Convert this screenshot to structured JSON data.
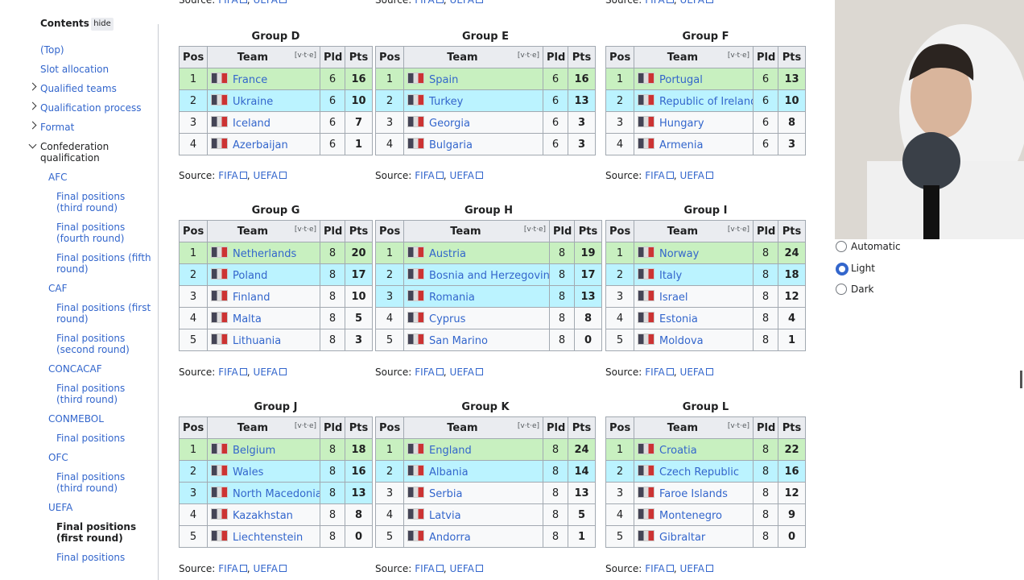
{
  "contents": {
    "title": "Contents",
    "hide": "hide",
    "items": [
      "(Top)",
      "Slot allocation",
      "Qualified teams",
      "Qualification process",
      "Format",
      "Confederation qualification",
      "AFC",
      "Final positions (third round)",
      "Final positions (fourth round)",
      "Final positions (fifth round)",
      "CAF",
      "Final positions (first round)",
      "Final positions (second round)",
      "CONCACAF",
      "Final positions (third round)",
      "CONMEBOL",
      "Final positions",
      "OFC",
      "Final positions (third round)",
      "UEFA",
      "Final positions (first round)",
      "Final positions"
    ]
  },
  "table_headers": [
    "Pos",
    "Team",
    "[v·t·e]",
    "Pld",
    "Pts"
  ],
  "source": {
    "label": "Source:",
    "links": [
      "FIFA",
      "UEFA"
    ],
    "separator": ","
  },
  "groups": [
    {
      "title": "Group D",
      "rows": [
        {
          "pos": 1,
          "team": "France",
          "pld": 6,
          "pts": 16,
          "color": "#c8f0c0"
        },
        {
          "pos": 2,
          "team": "Ukraine",
          "pld": 6,
          "pts": 10,
          "color": "#bbf3ff"
        },
        {
          "pos": 3,
          "team": "Iceland",
          "pld": 6,
          "pts": 7,
          "color": "#f8f9fa"
        },
        {
          "pos": 4,
          "team": "Azerbaijan",
          "pld": 6,
          "pts": 1,
          "color": "#f8f9fa"
        }
      ]
    },
    {
      "title": "Group E",
      "rows": [
        {
          "pos": 1,
          "team": "Spain",
          "pld": 6,
          "pts": 16,
          "color": "#c8f0c0"
        },
        {
          "pos": 2,
          "team": "Turkey",
          "pld": 6,
          "pts": 13,
          "color": "#bbf3ff"
        },
        {
          "pos": 3,
          "team": "Georgia",
          "pld": 6,
          "pts": 3,
          "color": "#f8f9fa"
        },
        {
          "pos": 4,
          "team": "Bulgaria",
          "pld": 6,
          "pts": 3,
          "color": "#f8f9fa"
        }
      ]
    },
    {
      "title": "Group F",
      "rows": [
        {
          "pos": 1,
          "team": "Portugal",
          "pld": 6,
          "pts": 13,
          "color": "#c8f0c0"
        },
        {
          "pos": 2,
          "team": "Republic of Ireland",
          "pld": 6,
          "pts": 10,
          "color": "#bbf3ff"
        },
        {
          "pos": 3,
          "team": "Hungary",
          "pld": 6,
          "pts": 8,
          "color": "#f8f9fa"
        },
        {
          "pos": 4,
          "team": "Armenia",
          "pld": 6,
          "pts": 3,
          "color": "#f8f9fa"
        }
      ]
    },
    {
      "title": "Group G",
      "rows": [
        {
          "pos": 1,
          "team": "Netherlands",
          "pld": 8,
          "pts": 20,
          "color": "#c8f0c0"
        },
        {
          "pos": 2,
          "team": "Poland",
          "pld": 8,
          "pts": 17,
          "color": "#bbf3ff"
        },
        {
          "pos": 3,
          "team": "Finland",
          "pld": 8,
          "pts": 10,
          "color": "#f8f9fa"
        },
        {
          "pos": 4,
          "team": "Malta",
          "pld": 8,
          "pts": 5,
          "color": "#f8f9fa"
        },
        {
          "pos": 5,
          "team": "Lithuania",
          "pld": 8,
          "pts": 3,
          "color": "#f8f9fa"
        }
      ]
    },
    {
      "title": "Group H",
      "rows": [
        {
          "pos": 1,
          "team": "Austria",
          "pld": 8,
          "pts": 19,
          "color": "#c8f0c0"
        },
        {
          "pos": 2,
          "team": "Bosnia and Herzegovina",
          "pld": 8,
          "pts": 17,
          "color": "#bbf3ff"
        },
        {
          "pos": 3,
          "team": "Romania",
          "pld": 8,
          "pts": 13,
          "color": "#bbf3ff"
        },
        {
          "pos": 4,
          "team": "Cyprus",
          "pld": 8,
          "pts": 8,
          "color": "#f8f9fa"
        },
        {
          "pos": 5,
          "team": "San Marino",
          "pld": 8,
          "pts": 0,
          "color": "#f8f9fa"
        }
      ]
    },
    {
      "title": "Group I",
      "rows": [
        {
          "pos": 1,
          "team": "Norway",
          "pld": 8,
          "pts": 24,
          "color": "#c8f0c0"
        },
        {
          "pos": 2,
          "team": "Italy",
          "pld": 8,
          "pts": 18,
          "color": "#bbf3ff"
        },
        {
          "pos": 3,
          "team": "Israel",
          "pld": 8,
          "pts": 12,
          "color": "#f8f9fa"
        },
        {
          "pos": 4,
          "team": "Estonia",
          "pld": 8,
          "pts": 4,
          "color": "#f8f9fa"
        },
        {
          "pos": 5,
          "team": "Moldova",
          "pld": 8,
          "pts": 1,
          "color": "#f8f9fa"
        }
      ]
    },
    {
      "title": "Group J",
      "rows": [
        {
          "pos": 1,
          "team": "Belgium",
          "pld": 8,
          "pts": 18,
          "color": "#c8f0c0"
        },
        {
          "pos": 2,
          "team": "Wales",
          "pld": 8,
          "pts": 16,
          "color": "#bbf3ff"
        },
        {
          "pos": 3,
          "team": "North Macedonia",
          "pld": 8,
          "pts": 13,
          "color": "#bbf3ff"
        },
        {
          "pos": 4,
          "team": "Kazakhstan",
          "pld": 8,
          "pts": 8,
          "color": "#f8f9fa"
        },
        {
          "pos": 5,
          "team": "Liechtenstein",
          "pld": 8,
          "pts": 0,
          "color": "#f8f9fa"
        }
      ]
    },
    {
      "title": "Group K",
      "rows": [
        {
          "pos": 1,
          "team": "England",
          "pld": 8,
          "pts": 24,
          "color": "#c8f0c0"
        },
        {
          "pos": 2,
          "team": "Albania",
          "pld": 8,
          "pts": 14,
          "color": "#bbf3ff"
        },
        {
          "pos": 3,
          "team": "Serbia",
          "pld": 8,
          "pts": 13,
          "color": "#f8f9fa"
        },
        {
          "pos": 4,
          "team": "Latvia",
          "pld": 8,
          "pts": 5,
          "color": "#f8f9fa"
        },
        {
          "pos": 5,
          "team": "Andorra",
          "pld": 8,
          "pts": 1,
          "color": "#f8f9fa"
        }
      ]
    },
    {
      "title": "Group L",
      "rows": [
        {
          "pos": 1,
          "team": "Croatia",
          "pld": 8,
          "pts": 22,
          "color": "#c8f0c0"
        },
        {
          "pos": 2,
          "team": "Czech Republic",
          "pld": 8,
          "pts": 16,
          "color": "#bbf3ff"
        },
        {
          "pos": 3,
          "team": "Faroe Islands",
          "pld": 8,
          "pts": 12,
          "color": "#f8f9fa"
        },
        {
          "pos": 4,
          "team": "Montenegro",
          "pld": 8,
          "pts": 9,
          "color": "#f8f9fa"
        },
        {
          "pos": 5,
          "team": "Gibraltar",
          "pld": 8,
          "pts": 0,
          "color": "#f8f9fa"
        }
      ]
    }
  ],
  "appearance": {
    "options": [
      "Automatic",
      "Light",
      "Dark"
    ],
    "selected": 1
  }
}
